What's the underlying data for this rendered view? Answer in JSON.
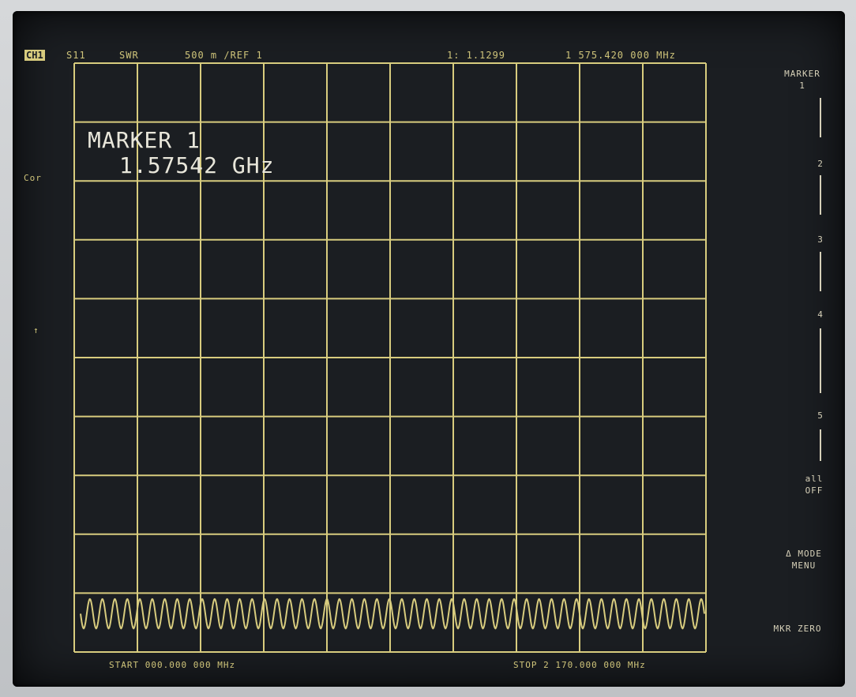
{
  "header": {
    "channel": "CH1",
    "parameter": "S11",
    "format": "SWR",
    "scale": "500 m /REF 1",
    "marker_value": "1: 1.1299",
    "marker_freq": "1 575.420 000 MHz"
  },
  "left_annotations": {
    "cor": "Cor",
    "arrow": "↑"
  },
  "marker_readout": {
    "line1": "MARKER 1",
    "line2": "1.57542 GHz"
  },
  "footer": {
    "start": "START 000.000 000 MHz",
    "stop": "STOP 2 170.000 000 MHz"
  },
  "softkeys": {
    "title_line1": "MARKER",
    "title_line2": "1",
    "m2": "2",
    "m3": "3",
    "m4": "4",
    "m5": "5",
    "all_off_1": "all",
    "all_off_2": "OFF",
    "mode_1": "Δ MODE",
    "mode_2": "MENU",
    "mkr_zero": "MKR ZERO"
  },
  "colors": {
    "screen_bg": "#1b1e22",
    "graticule": "#d8cc7e",
    "trace": "#d8cc7e",
    "text": "#cfc47a"
  },
  "trace": {
    "cycles": 50,
    "amplitude_fraction": 0.25,
    "level_fraction": 0.935
  }
}
